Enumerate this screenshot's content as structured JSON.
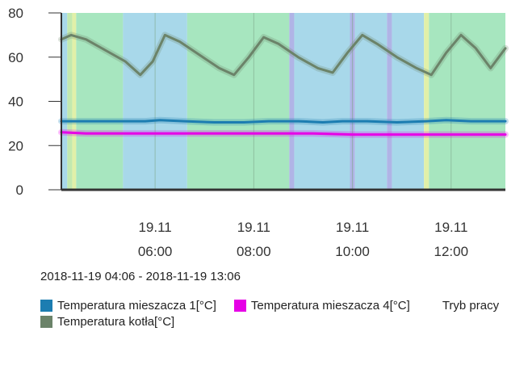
{
  "chart_data": {
    "type": "line",
    "x_unit": "hour",
    "xlim": [
      "2018-11-19 04:06",
      "2018-11-19 13:06"
    ],
    "ylim": [
      0,
      80
    ],
    "y_ticks": [
      "0",
      "20",
      "40",
      "60",
      "80"
    ],
    "x_ticks": [
      {
        "date": "19.11",
        "time": "06:00",
        "hour": 6
      },
      {
        "date": "19.11",
        "time": "08:00",
        "hour": 8
      },
      {
        "date": "19.11",
        "time": "10:00",
        "hour": 10
      },
      {
        "date": "19.11",
        "time": "12:00",
        "hour": 12
      }
    ],
    "mode_bands": [
      {
        "from": 4.1,
        "to": 4.22,
        "color": "#a8d8ea"
      },
      {
        "from": 4.22,
        "to": 4.32,
        "color": "#c2e9b0"
      },
      {
        "from": 4.32,
        "to": 4.4,
        "color": "#e1f0a8"
      },
      {
        "from": 4.4,
        "to": 5.35,
        "color": "#a7e6bf"
      },
      {
        "from": 5.35,
        "to": 6.65,
        "color": "#a8d8ea"
      },
      {
        "from": 6.65,
        "to": 8.72,
        "color": "#a7e6bf"
      },
      {
        "from": 8.72,
        "to": 8.82,
        "color": "#b0b4e6"
      },
      {
        "from": 8.82,
        "to": 9.95,
        "color": "#a8d8ea"
      },
      {
        "from": 9.95,
        "to": 10.05,
        "color": "#b0b4e6"
      },
      {
        "from": 10.05,
        "to": 10.7,
        "color": "#a8d8ea"
      },
      {
        "from": 10.7,
        "to": 10.8,
        "color": "#b0b4e6"
      },
      {
        "from": 10.8,
        "to": 11.45,
        "color": "#a8d8ea"
      },
      {
        "from": 11.45,
        "to": 11.55,
        "color": "#e1f0a8"
      },
      {
        "from": 11.55,
        "to": 13.1,
        "color": "#a7e6bf"
      }
    ],
    "series": [
      {
        "name": "Temperatura kotła[°C]",
        "color": "#6b8369",
        "x": [
          4.1,
          4.3,
          4.6,
          5.0,
          5.4,
          5.7,
          5.95,
          6.2,
          6.5,
          6.9,
          7.3,
          7.6,
          7.9,
          8.2,
          8.5,
          8.9,
          9.3,
          9.6,
          9.9,
          10.2,
          10.5,
          10.9,
          11.3,
          11.6,
          11.9,
          12.2,
          12.5,
          12.8,
          13.1
        ],
        "values": [
          68,
          70,
          68,
          63,
          58,
          52,
          58,
          70,
          67,
          61,
          55,
          52,
          60,
          69,
          66,
          60,
          55,
          53,
          62,
          70,
          66,
          60,
          55,
          52,
          62,
          70,
          64,
          55,
          64
        ]
      },
      {
        "name": "Temperatura mieszacza 1[°C]",
        "color": "#1c7db1",
        "x": [
          4.1,
          4.6,
          5.2,
          5.8,
          6.1,
          6.6,
          7.2,
          7.8,
          8.3,
          8.9,
          9.4,
          9.8,
          10.3,
          10.9,
          11.5,
          11.9,
          12.4,
          13.1
        ],
        "values": [
          31,
          31,
          31,
          31,
          31.5,
          31,
          30.5,
          30.5,
          31,
          31,
          30.5,
          31,
          31,
          30.5,
          31,
          31.5,
          31,
          31
        ]
      },
      {
        "name": "Temperatura mieszacza 4[°C]",
        "color": "#e600e6",
        "x": [
          4.1,
          4.6,
          5.2,
          6.0,
          6.8,
          7.6,
          8.4,
          9.2,
          10.0,
          10.8,
          11.6,
          12.4,
          13.1
        ],
        "values": [
          26,
          25.5,
          25.5,
          25.5,
          25.5,
          25.5,
          25.5,
          25.5,
          25,
          25,
          25,
          25,
          25
        ]
      }
    ]
  },
  "range_label": "2018-11-19 04:06 - 2018-11-19 13:06",
  "legend": [
    {
      "label": "Temperatura mieszacza 1[°C]",
      "color": "#1c7db1"
    },
    {
      "label": "Temperatura mieszacza 4[°C]",
      "color": "#e600e6"
    },
    {
      "label": "Tryb pracy",
      "color": ""
    },
    {
      "label": "Temperatura kotła[°C]",
      "color": "#6b8369"
    }
  ]
}
